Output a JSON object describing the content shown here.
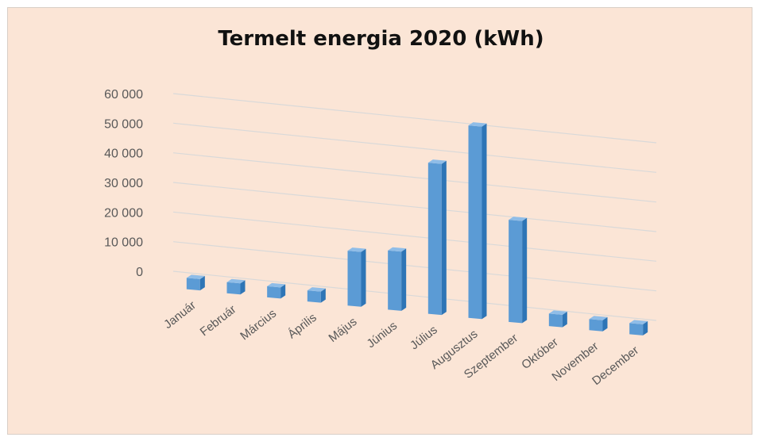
{
  "chart_data": {
    "type": "bar",
    "title": "Termelt energia 2020 (kWh)",
    "categories": [
      "Január",
      "Február",
      "Március",
      "Április",
      "Május",
      "Június",
      "Július",
      "Augusztus",
      "Szeptember",
      "Október",
      "November",
      "December"
    ],
    "values": [
      3800,
      2400,
      2400,
      2500,
      18500,
      20000,
      51000,
      65000,
      34500,
      4200,
      2100,
      2800
    ],
    "ylim": [
      0,
      60000
    ],
    "y_ticks": [
      "0",
      "10 000",
      "20 000",
      "30 000",
      "40 000",
      "50 000",
      "60 000"
    ],
    "grid": true,
    "legend": "none",
    "colors": {
      "bar_front": "#5b9bd5",
      "bar_side": "#2e75b6",
      "bar_top": "#8fbde8",
      "grid": "#d9d9d9",
      "background": "#fbe5d6"
    }
  }
}
